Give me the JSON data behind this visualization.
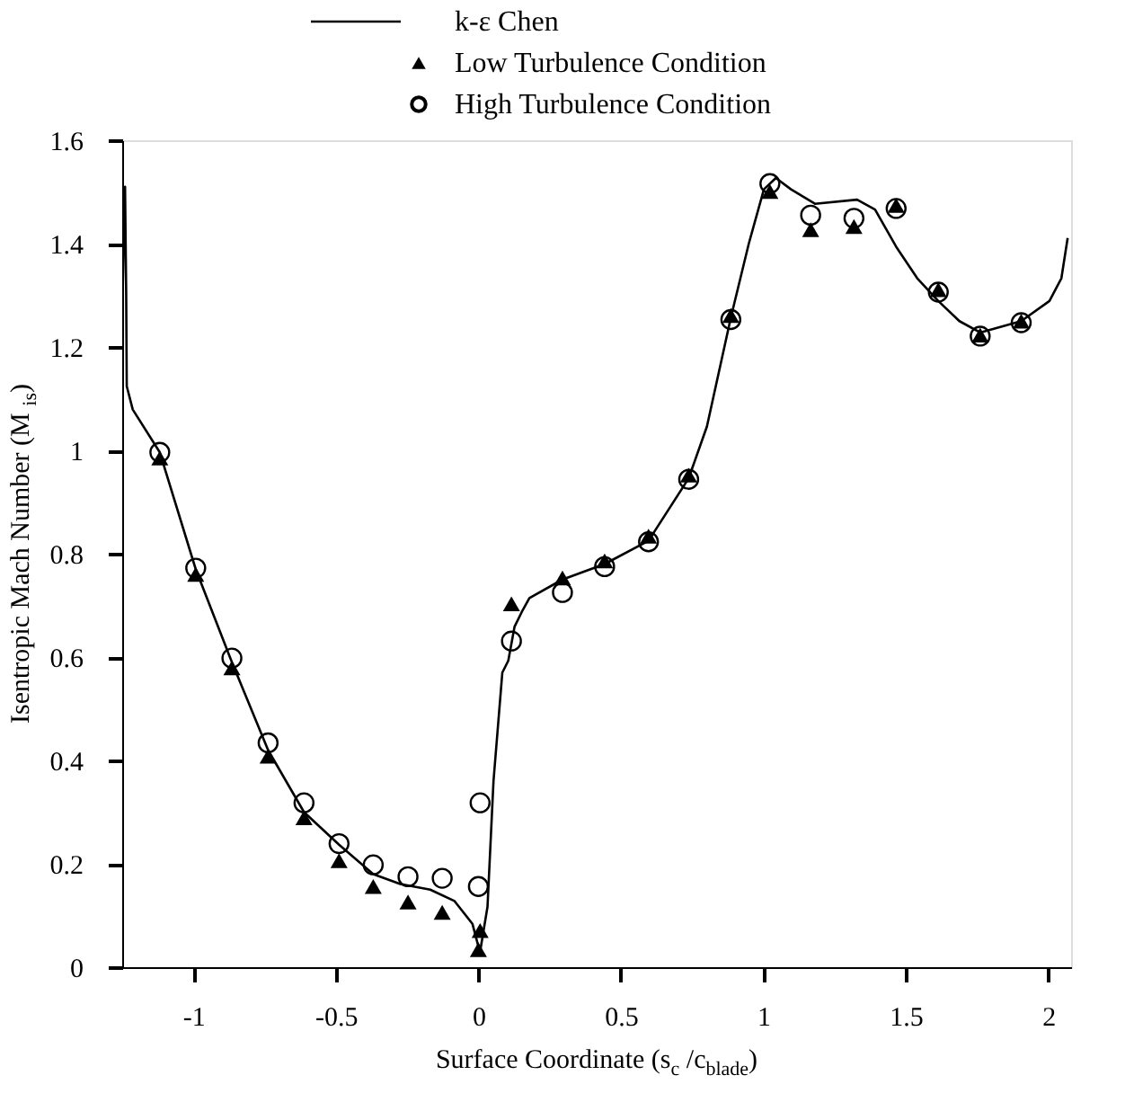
{
  "chart_data": {
    "type": "line",
    "xlabel": "Surface Coordinate (s$_{c}$ /c$_{blade}$)",
    "ylabel": "Isentropic Mach Number  (M$_{is}$)",
    "xlim": [
      -1.25,
      2.08
    ],
    "xticks": [
      -1,
      -0.5,
      0,
      0.5,
      1,
      1.5,
      2
    ],
    "ylim": [
      0,
      1.6
    ],
    "yticks": [
      0,
      0.2,
      0.4,
      0.6,
      0.8,
      1,
      1.2,
      1.4,
      1.6
    ],
    "grid": false,
    "legend": "top",
    "series": [
      {
        "name": "k-ε Chen",
        "type": "line",
        "color": "#000000",
        "marker": "none",
        "line_style": "solid",
        "x": [
          -1.25,
          -1.245,
          -1.24,
          -1.236,
          -1.234,
          -1.213,
          -1.118,
          -0.992,
          -0.865,
          -0.738,
          -0.612,
          -0.489,
          -0.369,
          -0.274,
          -0.169,
          -0.084,
          -0.021,
          0,
          0.006,
          0.032,
          0.053,
          0.084,
          0.105,
          0.127,
          0.152,
          0.179,
          0.295,
          0.443,
          0.597,
          0.738,
          0.802,
          0.886,
          0.949,
          1.002,
          1.044,
          1.097,
          1.181,
          1.329,
          1.392,
          1.466,
          1.54,
          1.614,
          1.688,
          1.761,
          1.905,
          2.004,
          2.046,
          2.068
        ],
        "values": [
          1.25,
          1.4,
          1.51,
          1.3,
          1.124,
          1.079,
          0.996,
          0.77,
          0.59,
          0.42,
          0.3,
          0.237,
          0.18,
          0.161,
          0.15,
          0.128,
          0.084,
          0.04,
          0.03,
          0.117,
          0.36,
          0.57,
          0.593,
          0.659,
          0.687,
          0.714,
          0.75,
          0.78,
          0.825,
          0.946,
          1.046,
          1.257,
          1.4,
          1.505,
          1.527,
          1.505,
          1.477,
          1.485,
          1.466,
          1.394,
          1.333,
          1.289,
          1.25,
          1.228,
          1.25,
          1.289,
          1.333,
          1.411
        ]
      },
      {
        "name": "Low Turbulence Condition",
        "type": "scatter",
        "color": "#000000",
        "marker": "triangle",
        "x": [
          -1.118,
          -0.992,
          -0.865,
          -0.738,
          -0.612,
          -0.489,
          -0.369,
          -0.247,
          -0.127,
          0,
          0.006,
          0.116,
          0.295,
          0.443,
          0.597,
          0.738,
          0.886,
          1.023,
          1.166,
          1.318,
          1.466,
          1.614,
          1.761,
          1.905
        ],
        "values": [
          0.985,
          0.76,
          0.579,
          0.408,
          0.289,
          0.206,
          0.156,
          0.126,
          0.106,
          0.034,
          0.071,
          0.703,
          0.753,
          0.786,
          0.834,
          0.952,
          1.261,
          1.501,
          1.427,
          1.433,
          1.474,
          1.311,
          1.223,
          1.25
        ]
      },
      {
        "name": "High Turbulence Condition",
        "type": "scatter",
        "color": "#000000",
        "marker": "circle",
        "x": [
          -1.118,
          -0.992,
          -0.865,
          -0.738,
          -0.612,
          -0.489,
          -0.369,
          -0.247,
          -0.127,
          0,
          0.006,
          0.116,
          0.295,
          0.443,
          0.597,
          0.738,
          0.886,
          1.023,
          1.166,
          1.318,
          1.466,
          1.614,
          1.761,
          1.905
        ],
        "values": [
          0.996,
          0.772,
          0.598,
          0.434,
          0.318,
          0.239,
          0.198,
          0.175,
          0.172,
          0.156,
          0.318,
          0.631,
          0.725,
          0.775,
          0.823,
          0.944,
          1.253,
          1.516,
          1.455,
          1.449,
          1.468,
          1.306,
          1.221,
          1.247
        ]
      }
    ]
  }
}
